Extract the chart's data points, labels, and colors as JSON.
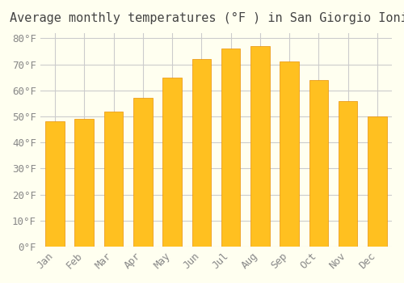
{
  "title": "Average monthly temperatures (°F ) in San Giorgio Ionico",
  "months": [
    "Jan",
    "Feb",
    "Mar",
    "Apr",
    "May",
    "Jun",
    "Jul",
    "Aug",
    "Sep",
    "Oct",
    "Nov",
    "Dec"
  ],
  "values": [
    48,
    49,
    52,
    57,
    65,
    72,
    76,
    77,
    71,
    64,
    56,
    50
  ],
  "bar_color": "#FFA500",
  "bar_edge_color": "#CC8800",
  "background_color": "#FFFFF0",
  "grid_color": "#CCCCCC",
  "ylim": [
    0,
    82
  ],
  "yticks": [
    0,
    10,
    20,
    30,
    40,
    50,
    60,
    70,
    80
  ],
  "ytick_labels": [
    "0°F",
    "10°F",
    "20°F",
    "30°F",
    "40°F",
    "50°F",
    "60°F",
    "70°F",
    "80°F"
  ],
  "title_fontsize": 11,
  "tick_fontsize": 9
}
